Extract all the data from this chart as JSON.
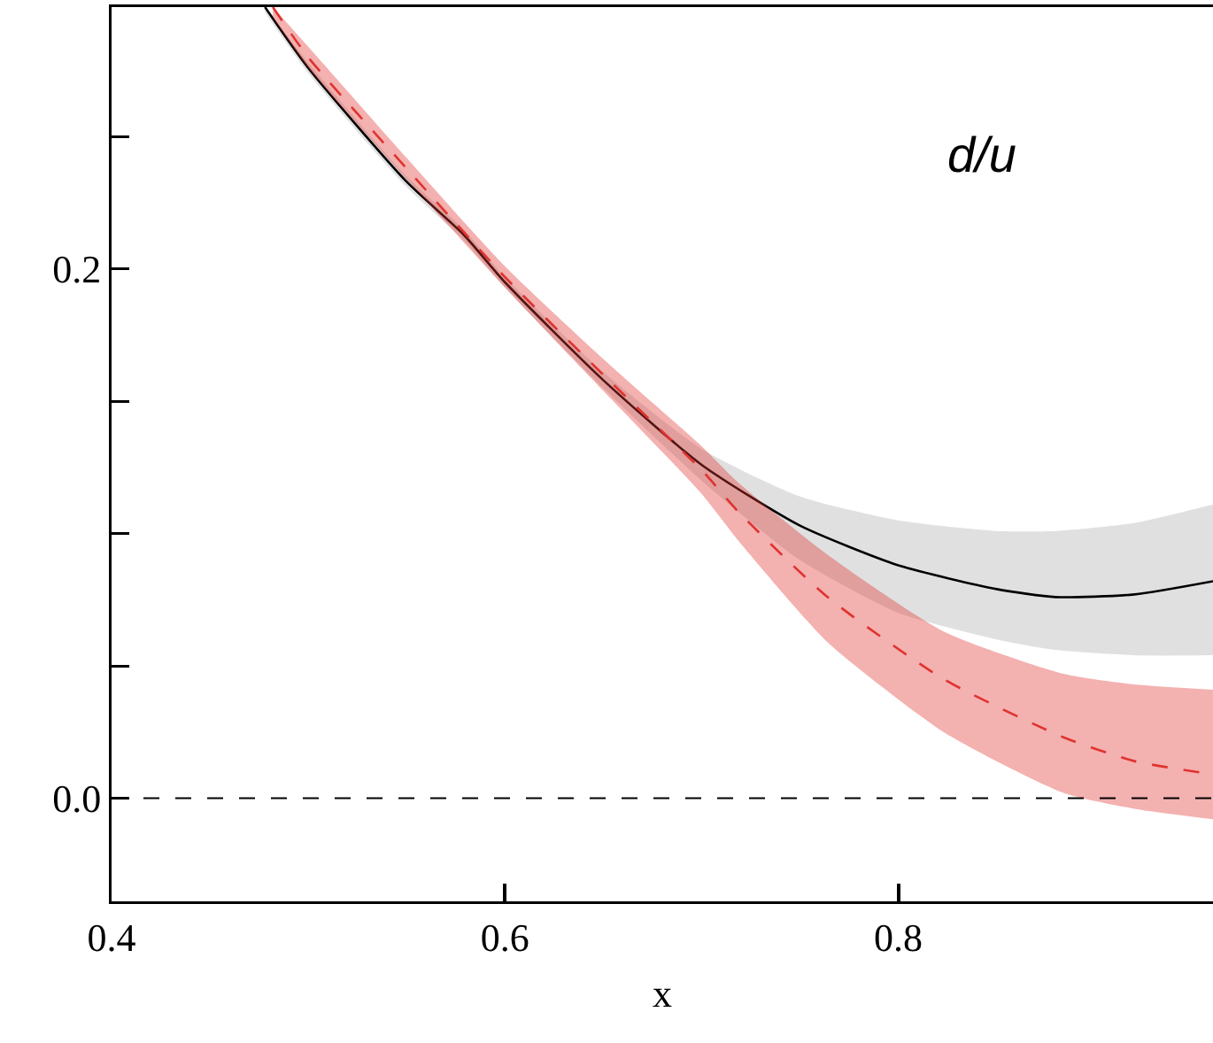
{
  "chart_data": {
    "type": "line",
    "xlabel": "x",
    "annotations": [
      "d/u"
    ],
    "xlim": [
      0.4,
      0.96
    ],
    "ylim": [
      -0.039,
      0.299
    ],
    "xticks": [
      0.4,
      0.6,
      0.8
    ],
    "yticks": [
      {
        "value": 0,
        "label": "0.0"
      },
      {
        "value": 0.05,
        "label": null
      },
      {
        "value": 0.1,
        "label": null
      },
      {
        "value": 0.15,
        "label": null
      },
      {
        "value": 0.2,
        "label": "0.2"
      },
      {
        "value": 0.25,
        "label": null
      }
    ],
    "grid": false,
    "marker": "none",
    "ref_lines": [
      {
        "axis": "y",
        "value": 0,
        "color": "#000000",
        "line_style": "dashed"
      }
    ],
    "series": [
      {
        "color": "#000000",
        "line_style": "solid",
        "x": [
          0.478,
          0.5,
          0.55,
          0.579,
          0.6,
          0.65,
          0.7,
          0.75,
          0.8,
          0.85,
          0.88,
          0.92,
          0.96
        ],
        "values": [
          0.299,
          0.276,
          0.233,
          0.213,
          0.195,
          0.158,
          0.126,
          0.103,
          0.088,
          0.079,
          0.076,
          0.077,
          0.082
        ],
        "lower": [
          0.297,
          0.274,
          0.231,
          0.211,
          0.193,
          0.155,
          0.12,
          0.09,
          0.07,
          0.06,
          0.056,
          0.054,
          0.054
        ],
        "upper": [
          0.299,
          0.278,
          0.235,
          0.215,
          0.197,
          0.161,
          0.132,
          0.114,
          0.105,
          0.101,
          0.101,
          0.104,
          0.111
        ]
      },
      {
        "color": "#e0332f",
        "line_style": "dashed",
        "x": [
          0.482,
          0.5,
          0.55,
          0.6,
          0.65,
          0.7,
          0.719,
          0.764,
          0.823,
          0.884,
          0.92,
          0.96
        ],
        "values": [
          0.299,
          0.28,
          0.238,
          0.197,
          0.16,
          0.124,
          0.108,
          0.076,
          0.045,
          0.023,
          0.014,
          0.009
        ],
        "lower": [
          0.295,
          0.276,
          0.234,
          0.193,
          0.154,
          0.115,
          0.097,
          0.059,
          0.025,
          0.002,
          -0.004,
          -0.008
        ],
        "upper": [
          0.299,
          0.284,
          0.242,
          0.201,
          0.166,
          0.133,
          0.119,
          0.092,
          0.063,
          0.047,
          0.043,
          0.041
        ]
      }
    ]
  }
}
